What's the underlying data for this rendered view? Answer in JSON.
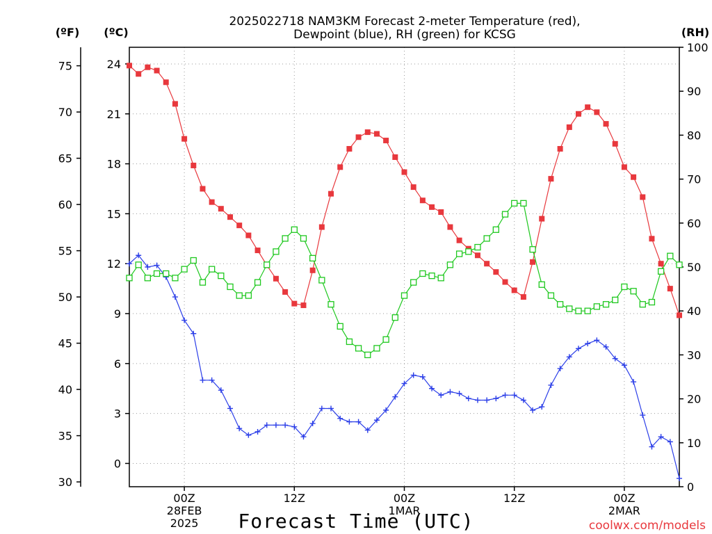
{
  "chart_data": {
    "type": "line",
    "title_line1": "2025022718 NAM3KM Forecast 2-meter Temperature (red),",
    "title_line2": "Dewpoint (blue), RH (green) for KCSG",
    "xlabel": "Forecast Time (UTC)",
    "watermark": "coolwx.com/models",
    "grid": true,
    "axes": {
      "left_outer": {
        "label": "(ºF)",
        "ticks": [
          30,
          35,
          40,
          45,
          50,
          55,
          60,
          65,
          70,
          75
        ]
      },
      "left_inner": {
        "label": "(ºC)",
        "ticks": [
          0,
          3,
          6,
          9,
          12,
          15,
          18,
          21,
          24
        ],
        "ylim": [
          -1.4,
          25.0
        ]
      },
      "right": {
        "label": "(RH)",
        "ticks": [
          0,
          10,
          20,
          30,
          40,
          50,
          60,
          70,
          80,
          90,
          100
        ],
        "ylim": [
          0,
          100
        ]
      }
    },
    "x_range_hours": [
      0,
      60
    ],
    "x_ticks": [
      {
        "hour": 6,
        "line1": "00Z",
        "line2": "28FEB",
        "line3": "2025"
      },
      {
        "hour": 18,
        "line1": "12Z",
        "line2": "",
        "line3": ""
      },
      {
        "hour": 30,
        "line1": "00Z",
        "line2": "1MAR",
        "line3": ""
      },
      {
        "hour": 42,
        "line1": "12Z",
        "line2": "",
        "line3": ""
      },
      {
        "hour": 54,
        "line1": "00Z",
        "line2": "2MAR",
        "line3": ""
      }
    ],
    "series": [
      {
        "name": "Temperature",
        "color": "#e8383d",
        "marker": "filled-square",
        "axis": "celsius",
        "values": [
          23.9,
          23.4,
          23.8,
          23.6,
          22.9,
          21.6,
          19.5,
          17.9,
          16.5,
          15.7,
          15.3,
          14.8,
          14.3,
          13.7,
          12.8,
          11.9,
          11.1,
          10.3,
          9.6,
          9.5,
          11.6,
          14.2,
          16.2,
          17.8,
          18.9,
          19.6,
          19.9,
          19.8,
          19.4,
          18.4,
          17.5,
          16.6,
          15.8,
          15.4,
          15.1,
          14.2,
          13.4,
          12.9,
          12.5,
          12.0,
          11.5,
          10.9,
          10.4,
          10.0,
          12.1,
          14.7,
          17.1,
          18.9,
          20.2,
          21.0,
          21.4,
          21.1,
          20.4,
          19.2,
          17.8,
          17.2,
          16.0,
          13.5,
          12.0,
          10.5,
          8.9
        ]
      },
      {
        "name": "Dewpoint",
        "color": "#2b3ee8",
        "marker": "plus",
        "axis": "celsius",
        "values": [
          12.0,
          12.5,
          11.8,
          11.9,
          11.2,
          10.0,
          8.6,
          7.8,
          5.0,
          5.0,
          4.4,
          3.3,
          2.1,
          1.7,
          1.9,
          2.3,
          2.3,
          2.3,
          2.2,
          1.6,
          2.4,
          3.3,
          3.3,
          2.7,
          2.5,
          2.5,
          2.0,
          2.6,
          3.2,
          4.0,
          4.8,
          5.3,
          5.2,
          4.5,
          4.1,
          4.3,
          4.2,
          3.9,
          3.8,
          3.8,
          3.9,
          4.1,
          4.1,
          3.8,
          3.2,
          3.4,
          4.7,
          5.7,
          6.4,
          6.9,
          7.2,
          7.4,
          7.0,
          6.3,
          5.9,
          4.9,
          2.9,
          1.0,
          1.6,
          1.3,
          -0.9
        ]
      },
      {
        "name": "RH",
        "color": "#1ec81e",
        "marker": "open-square",
        "axis": "rh",
        "values": [
          47.5,
          50.5,
          47.5,
          48.5,
          48.5,
          47.5,
          49.5,
          51.5,
          46.5,
          49.5,
          48.0,
          45.5,
          43.5,
          43.5,
          46.5,
          50.5,
          53.5,
          56.5,
          58.5,
          56.5,
          52.0,
          47.0,
          41.5,
          36.5,
          33.0,
          31.5,
          30.0,
          31.5,
          33.5,
          38.5,
          43.5,
          46.5,
          48.5,
          48.0,
          47.5,
          50.5,
          53.0,
          53.5,
          54.5,
          56.5,
          58.5,
          62.0,
          64.5,
          64.5,
          54.0,
          46.0,
          43.5,
          41.5,
          40.5,
          40.0,
          40.0,
          41.0,
          41.5,
          42.5,
          45.5,
          44.5,
          41.5,
          42.0,
          49.0,
          52.5,
          50.5
        ]
      }
    ]
  }
}
